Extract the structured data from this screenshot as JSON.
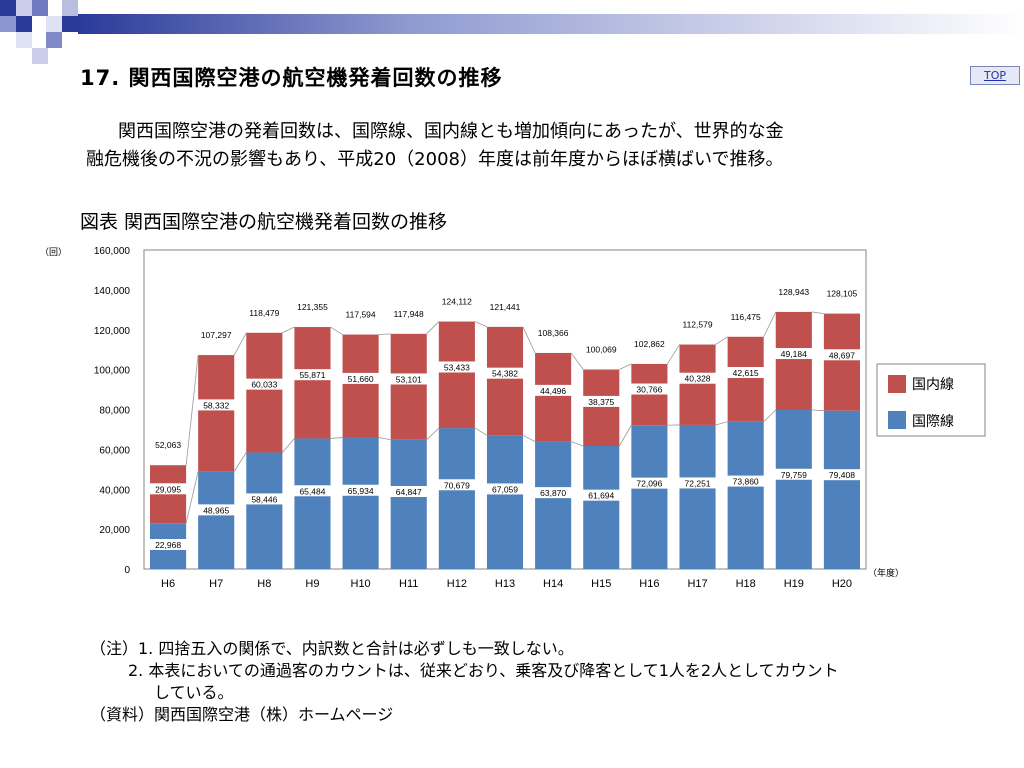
{
  "page": {
    "title": "17. 関西国際空港の航空機発着回数の推移",
    "top_link": "TOP",
    "description_line1": "関西国際空港の発着回数は、国際線、国内線とも増加傾向にあったが、世界的な金",
    "description_line2": "融危機後の不況の影響もあり、平成20（2008）年度は前年度からほぼ横ばいで推移。",
    "figure_caption": "図表 関西国際空港の航空機発着回数の推移",
    "note1": "（注）1. 四捨五入の関係で、内訳数と合計は必ずしも一致しない。",
    "note2a": "2. 本表においての通過客のカウントは、従来どおり、乗客及び降客として1人を2人としてカウント",
    "note2b": "している。",
    "note3": "（資料）関西国際空港（株）ホームページ"
  },
  "chart_data": {
    "type": "bar",
    "stacked": true,
    "categories": [
      "H6",
      "H7",
      "H8",
      "H9",
      "H10",
      "H11",
      "H12",
      "H13",
      "H14",
      "H15",
      "H16",
      "H17",
      "H18",
      "H19",
      "H20"
    ],
    "series": [
      {
        "name": "国際線",
        "color": "#4f81bd",
        "values": [
          22968,
          48965,
          58446,
          65484,
          65934,
          64847,
          70679,
          67059,
          63870,
          61694,
          72096,
          72251,
          73860,
          79759,
          79408
        ]
      },
      {
        "name": "国内線",
        "color": "#c0504d",
        "values": [
          29095,
          58332,
          60033,
          55871,
          51660,
          53101,
          53433,
          54382,
          44496,
          38375,
          30766,
          40328,
          42615,
          49184,
          48697
        ]
      }
    ],
    "totals": [
      52063,
      107297,
      118479,
      121355,
      117594,
      117948,
      124112,
      121441,
      108366,
      100069,
      102862,
      112579,
      116475,
      128943,
      128105
    ],
    "ylabel": "（回）",
    "xlabel": "（年度）",
    "ylim": [
      0,
      160000
    ],
    "yticks": [
      0,
      20000,
      40000,
      60000,
      80000,
      100000,
      120000,
      140000,
      160000
    ],
    "legend_position": "right",
    "grid": false
  }
}
